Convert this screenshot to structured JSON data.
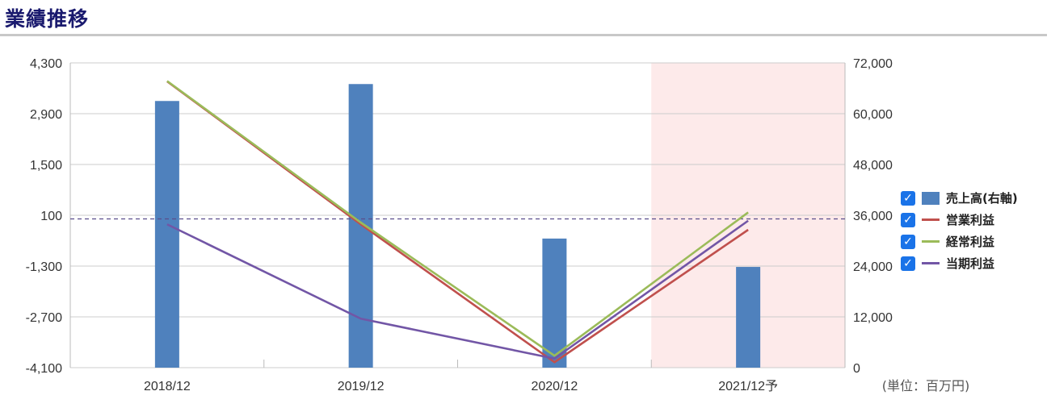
{
  "page": {
    "title": "業績推移",
    "unit_note": "(単位：百万円)"
  },
  "colors": {
    "bar": "#4f81bd",
    "operating": "#c0504d",
    "ordinary": "#9bbb59",
    "net": "#7256a6",
    "forecast_bg": "#fdeaea",
    "grid": "#cccccc",
    "zero_line": "#5a4e8c"
  },
  "legend": [
    {
      "label": "売上高(右軸)",
      "kind": "bar",
      "color": "#4f81bd",
      "checked": true
    },
    {
      "label": "営業利益",
      "kind": "line",
      "color": "#c0504d",
      "checked": true
    },
    {
      "label": "経常利益",
      "kind": "line",
      "color": "#9bbb59",
      "checked": true
    },
    {
      "label": "当期利益",
      "kind": "line",
      "color": "#7256a6",
      "checked": true
    }
  ],
  "chart_data": {
    "type": "bar",
    "categories": [
      "2018/12",
      "2019/12",
      "2020/12",
      "2021/12予"
    ],
    "forecast_categories": [
      "2021/12予"
    ],
    "left_axis": {
      "ticks": [
        "4,300",
        "2,900",
        "1,500",
        "100",
        "-1,300",
        "-2,700",
        "-4,100"
      ],
      "ylim": [
        -4100,
        4300
      ]
    },
    "right_axis": {
      "ticks": [
        "72,000",
        "60,000",
        "48,000",
        "36,000",
        "24,000",
        "12,000",
        "0"
      ],
      "ylim": [
        0,
        72000
      ]
    },
    "series": [
      {
        "name": "売上高(右軸)",
        "type": "bar",
        "axis": "right",
        "values": [
          63000,
          67000,
          30500,
          23800
        ]
      },
      {
        "name": "営業利益",
        "type": "line",
        "axis": "left",
        "values": [
          3790,
          -150,
          -3950,
          -300
        ]
      },
      {
        "name": "経常利益",
        "type": "line",
        "axis": "left",
        "values": [
          3800,
          -100,
          -3770,
          180
        ]
      },
      {
        "name": "当期利益",
        "type": "line",
        "axis": "left",
        "values": [
          -150,
          -2750,
          -3850,
          -50
        ]
      }
    ],
    "reference_line": {
      "axis": "left",
      "value": 0,
      "style": "dashed"
    },
    "grid": true,
    "legend_position": "right"
  }
}
